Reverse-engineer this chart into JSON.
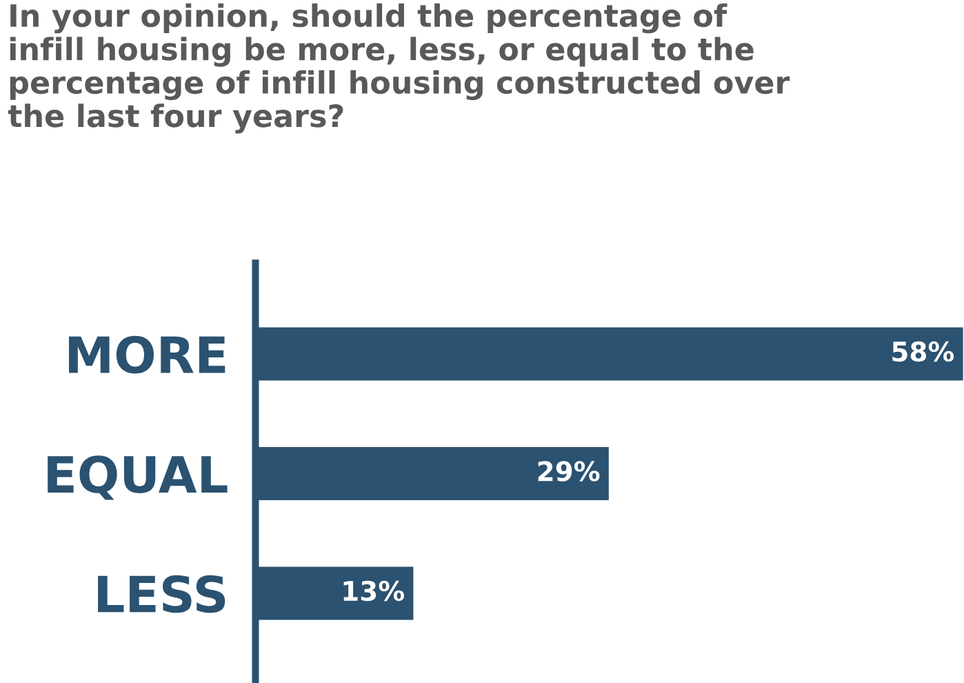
{
  "chart_data": {
    "type": "bar",
    "orientation": "horizontal",
    "title": "In your opinion, should the percentage of\ninfill housing be more, less, or equal to the\npercentage of infill housing constructed over\nthe last four years?",
    "categories": [
      "MORE",
      "EQUAL",
      "LESS"
    ],
    "values": [
      58,
      29,
      13
    ],
    "value_labels": [
      "58%",
      "29%",
      "13%"
    ],
    "color": "#2b5270",
    "xlim": [
      0,
      58
    ],
    "tick_labels": "y",
    "grid": false,
    "legend": false
  }
}
